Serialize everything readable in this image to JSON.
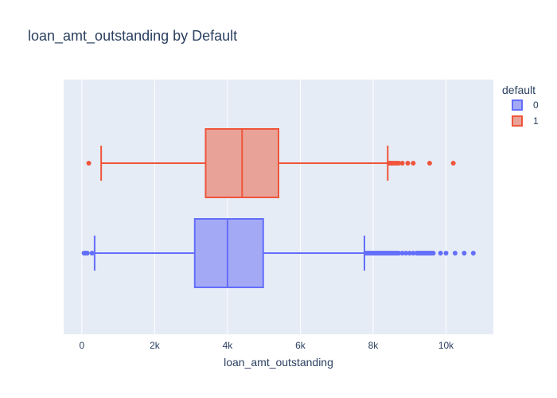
{
  "chart_data": {
    "type": "box",
    "title": "loan_amt_outstanding by Default",
    "xlabel": "loan_amt_outstanding",
    "ylabel": "",
    "xlim": [
      -500,
      11300
    ],
    "x_ticks": [
      0,
      2000,
      4000,
      6000,
      8000,
      10000
    ],
    "x_tick_labels": [
      "0",
      "2k",
      "4k",
      "6k",
      "8k",
      "10k"
    ],
    "grid": true,
    "legend": {
      "title": "default",
      "position": "top-right"
    },
    "series": [
      {
        "name": "0",
        "color": "#636efa",
        "fill": "#a4a9f5",
        "min": 350,
        "q1": 3100,
        "median": 4000,
        "q3": 4980,
        "max": 7760,
        "outliers": [
          60,
          100,
          150,
          280,
          7800,
          7850,
          7900,
          7950,
          8000,
          8050,
          8100,
          8150,
          8200,
          8250,
          8300,
          8350,
          8400,
          8450,
          8500,
          8550,
          8600,
          8650,
          8700,
          8800,
          8900,
          9000,
          9100,
          9200,
          9250,
          9300,
          9350,
          9400,
          9450,
          9500,
          9550,
          9600,
          9650,
          9850,
          10000,
          10250,
          10500,
          10750
        ]
      },
      {
        "name": "1",
        "color": "#ef553b",
        "fill": "#e9a297",
        "min": 530,
        "q1": 3400,
        "median": 4400,
        "q3": 5400,
        "max": 8400,
        "outliers": [
          190,
          8430,
          8470,
          8510,
          8550,
          8600,
          8650,
          8700,
          8800,
          8950,
          9100,
          9550,
          10200
        ]
      }
    ]
  }
}
